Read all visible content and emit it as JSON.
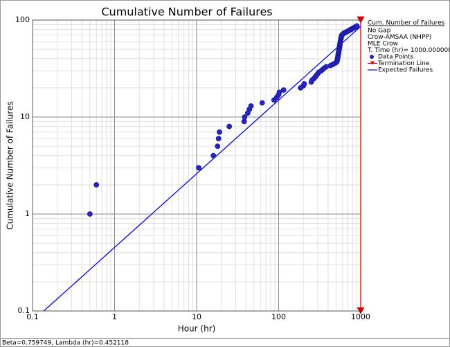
{
  "chart_data": {
    "type": "scatter",
    "title": "Cumulative Number of Failures",
    "x_label": "Hour (hr)",
    "y_label": "Cumulative Number of Failures",
    "xscale": "log",
    "yscale": "log",
    "xlim": [
      0.1,
      1000
    ],
    "ylim": [
      0.1,
      100
    ],
    "xticks": [
      0.1,
      1,
      10,
      100,
      1000
    ],
    "yticks": [
      0.1,
      1,
      10,
      100
    ],
    "grid": true,
    "legend": {
      "position": "right",
      "header": "Cum. Number of Failures",
      "notes": [
        "No Gap",
        "Crow-AMSAA (NHPP)",
        "MLE Crow",
        "T. Time (hr)= 1000.000000"
      ]
    },
    "footer": "Beta=0.759749, Lambda (hr)=0.452118",
    "series": [
      {
        "name": "Data Points",
        "color": "#1a1aa8",
        "kind": "points",
        "x": [
          0.5,
          0.6,
          10.6,
          16,
          18,
          18.5,
          19,
          25,
          38,
          38.5,
          42,
          44,
          46,
          63,
          88,
          95,
          100,
          102,
          115,
          185,
          200,
          205,
          250,
          255,
          270,
          280,
          290,
          300,
          310,
          330,
          345,
          360,
          380,
          430,
          460,
          490,
          510,
          515,
          520,
          522,
          525,
          528,
          530,
          532,
          535,
          537,
          540,
          542,
          544,
          546,
          548,
          550,
          552,
          554,
          556,
          558,
          560,
          562,
          564,
          566,
          568,
          570,
          572,
          574,
          576,
          578,
          580,
          582,
          585,
          590,
          600,
          610,
          620,
          640,
          660,
          680,
          700,
          720,
          740,
          760,
          780,
          800,
          820,
          840,
          860,
          880,
          900
        ],
        "values": [
          1,
          2,
          3,
          4,
          5,
          6,
          7,
          8,
          9,
          10,
          11,
          12,
          13,
          14,
          15,
          16,
          17,
          18,
          19,
          20,
          21,
          22,
          23,
          24,
          25,
          26,
          27,
          28,
          29,
          30,
          31,
          32,
          33,
          34,
          35,
          36,
          37,
          38,
          39,
          40,
          41,
          42,
          43,
          44,
          45,
          46,
          47,
          48,
          49,
          50,
          51,
          52,
          53,
          54,
          55,
          56,
          57,
          58,
          59,
          60,
          61,
          62,
          63,
          64,
          65,
          66,
          67,
          68,
          69,
          70,
          71,
          72,
          73,
          74,
          75,
          76,
          77,
          78,
          79,
          80,
          81,
          82,
          83,
          84,
          85,
          86,
          87
        ]
      },
      {
        "name": "Termination Line",
        "color": "#e00000",
        "kind": "termination",
        "x": [
          1000,
          1000
        ],
        "values": [
          0.1,
          100
        ]
      },
      {
        "name": "Expected Failures",
        "color": "#0000ff",
        "kind": "line",
        "x": [
          0.137,
          1000
        ],
        "values": [
          0.1,
          86
        ]
      }
    ]
  }
}
